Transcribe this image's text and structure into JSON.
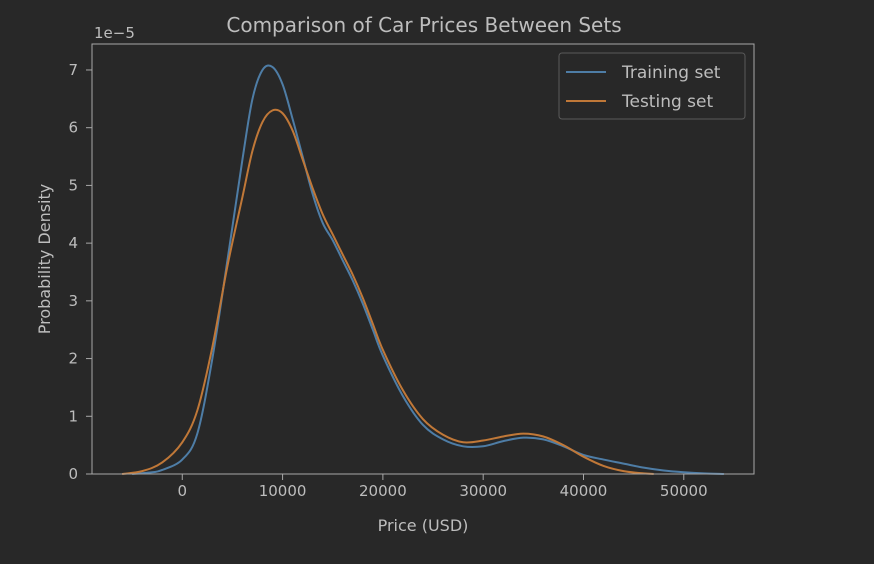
{
  "chart_data": {
    "type": "line",
    "title": "Comparison of Car Prices Between Sets",
    "xlabel": "Price (USD)",
    "ylabel": "Probability Density",
    "y_scale_label": "1e−5",
    "xlim": [
      -9000,
      57000
    ],
    "ylim": [
      0,
      7.45
    ],
    "x_ticks": [
      0,
      10000,
      20000,
      30000,
      40000,
      50000
    ],
    "x_tick_labels": [
      "0",
      "10000",
      "20000",
      "30000",
      "40000",
      "50000"
    ],
    "y_ticks": [
      0,
      1,
      2,
      3,
      4,
      5,
      6,
      7
    ],
    "y_tick_labels": [
      "0",
      "1",
      "2",
      "3",
      "4",
      "5",
      "6",
      "7"
    ],
    "grid": false,
    "legend_position": "top-right",
    "series": [
      {
        "name": "Training set",
        "color": "#4e7da6",
        "points": [
          [
            -5000,
            0.0
          ],
          [
            -3000,
            0.03
          ],
          [
            -2000,
            0.07
          ],
          [
            0,
            0.25
          ],
          [
            1500,
            0.7
          ],
          [
            3000,
            2.0
          ],
          [
            4500,
            3.7
          ],
          [
            6000,
            5.45
          ],
          [
            7000,
            6.5
          ],
          [
            8000,
            7.0
          ],
          [
            9000,
            7.05
          ],
          [
            10000,
            6.75
          ],
          [
            11000,
            6.15
          ],
          [
            12000,
            5.5
          ],
          [
            13000,
            4.85
          ],
          [
            14000,
            4.35
          ],
          [
            15000,
            4.05
          ],
          [
            16000,
            3.7
          ],
          [
            17000,
            3.35
          ],
          [
            18000,
            2.95
          ],
          [
            19000,
            2.5
          ],
          [
            20000,
            2.05
          ],
          [
            22000,
            1.35
          ],
          [
            24000,
            0.85
          ],
          [
            26000,
            0.6
          ],
          [
            28000,
            0.48
          ],
          [
            30000,
            0.48
          ],
          [
            32000,
            0.57
          ],
          [
            34000,
            0.63
          ],
          [
            36000,
            0.6
          ],
          [
            38000,
            0.48
          ],
          [
            40000,
            0.33
          ],
          [
            42000,
            0.25
          ],
          [
            44000,
            0.18
          ],
          [
            46000,
            0.11
          ],
          [
            48000,
            0.06
          ],
          [
            50000,
            0.03
          ],
          [
            52000,
            0.01
          ],
          [
            54000,
            0.0
          ]
        ]
      },
      {
        "name": "Testing set",
        "color": "#c07838",
        "points": [
          [
            -6000,
            0.0
          ],
          [
            -4000,
            0.05
          ],
          [
            -2000,
            0.2
          ],
          [
            0,
            0.55
          ],
          [
            1500,
            1.1
          ],
          [
            3000,
            2.2
          ],
          [
            4500,
            3.6
          ],
          [
            6000,
            4.8
          ],
          [
            7000,
            5.6
          ],
          [
            8000,
            6.1
          ],
          [
            9000,
            6.3
          ],
          [
            10000,
            6.25
          ],
          [
            11000,
            5.95
          ],
          [
            12000,
            5.45
          ],
          [
            13000,
            4.95
          ],
          [
            14000,
            4.5
          ],
          [
            15000,
            4.15
          ],
          [
            16000,
            3.8
          ],
          [
            17000,
            3.45
          ],
          [
            18000,
            3.05
          ],
          [
            19000,
            2.6
          ],
          [
            20000,
            2.15
          ],
          [
            22000,
            1.45
          ],
          [
            24000,
            0.95
          ],
          [
            26000,
            0.68
          ],
          [
            28000,
            0.55
          ],
          [
            30000,
            0.58
          ],
          [
            32000,
            0.65
          ],
          [
            34000,
            0.7
          ],
          [
            36000,
            0.65
          ],
          [
            38000,
            0.5
          ],
          [
            40000,
            0.3
          ],
          [
            42000,
            0.14
          ],
          [
            44000,
            0.05
          ],
          [
            46000,
            0.01
          ],
          [
            47000,
            0.0
          ]
        ]
      }
    ]
  }
}
